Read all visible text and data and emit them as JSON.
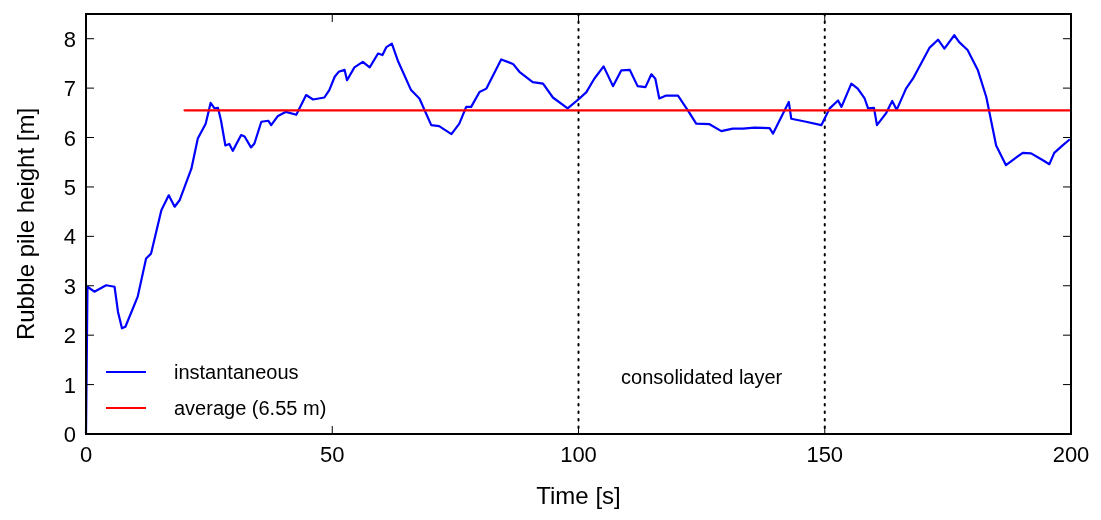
{
  "chart_data": {
    "type": "line",
    "xlabel": "Time [s]",
    "ylabel": "Rubble pile height [m]",
    "xlim": [
      0,
      200
    ],
    "ylim": [
      0,
      8.5
    ],
    "xticks": [
      0,
      50,
      100,
      150,
      200
    ],
    "yticks": [
      0,
      1,
      2,
      3,
      4,
      5,
      6,
      7,
      8
    ],
    "grid": false,
    "legend": "bottom left",
    "line_style": "solid",
    "marker": "none",
    "series": [
      {
        "name": "instantaneous",
        "color": "#0000ff",
        "x": [
          0,
          0.3,
          1.7,
          4.1,
          5.8,
          6.5,
          7.3,
          8.0,
          10.5,
          12.2,
          13.2,
          15.3,
          16.8,
          18.0,
          19.0,
          21.4,
          22.7,
          24.3,
          25.3,
          26.1,
          26.8,
          27.4,
          28.3,
          29.1,
          29.8,
          31.5,
          32.2,
          33.5,
          34.2,
          35.6,
          37.0,
          37.6,
          38.9,
          40.6,
          42.7,
          44.7,
          46.1,
          48.4,
          49.4,
          50.5,
          51.3,
          52.5,
          53.0,
          54.5,
          56.2,
          57.6,
          59.3,
          60.2,
          61.0,
          62.1,
          63.3,
          66.0,
          67.7,
          70.1,
          71.7,
          74.2,
          75.8,
          77.2,
          78.2,
          79.9,
          81.3,
          84.3,
          86.7,
          88.0,
          90.7,
          92.8,
          94.8,
          97.8,
          100.2,
          101.6,
          103.2,
          105.1,
          107.0,
          108.7,
          110.4,
          112.0,
          113.6,
          114.8,
          115.6,
          116.4,
          117.8,
          120.2,
          122.2,
          123.9,
          126.6,
          129.0,
          131.3,
          133.4,
          135.7,
          138.8,
          139.5,
          141.2,
          142.7,
          143.2,
          146.2,
          149.3,
          151.0,
          152.7,
          153.4,
          155.4,
          156.7,
          158.1,
          158.8,
          160.0,
          160.6,
          162.5,
          163.7,
          164.6,
          166.5,
          167.9,
          171.3,
          173.0,
          174.3,
          176.3,
          177.3,
          179.0,
          181.1,
          182.8,
          184.8,
          186.8,
          188.5,
          190.2,
          191.9,
          194.3,
          195.6,
          196.6,
          198.3,
          199.6
        ],
        "values": [
          0,
          2.98,
          2.88,
          3.01,
          2.98,
          2.47,
          2.14,
          2.17,
          2.78,
          3.55,
          3.65,
          4.53,
          4.83,
          4.6,
          4.73,
          5.37,
          5.98,
          6.28,
          6.7,
          6.59,
          6.6,
          6.35,
          5.84,
          5.87,
          5.73,
          6.05,
          6.02,
          5.8,
          5.88,
          6.32,
          6.34,
          6.25,
          6.43,
          6.52,
          6.46,
          6.86,
          6.77,
          6.81,
          6.96,
          7.23,
          7.33,
          7.37,
          7.16,
          7.42,
          7.53,
          7.42,
          7.7,
          7.67,
          7.83,
          7.9,
          7.56,
          6.96,
          6.79,
          6.25,
          6.23,
          6.07,
          6.28,
          6.62,
          6.62,
          6.92,
          6.99,
          7.58,
          7.49,
          7.33,
          7.12,
          7.09,
          6.81,
          6.59,
          6.79,
          6.92,
          7.19,
          7.44,
          7.04,
          7.36,
          7.37,
          7.04,
          7.02,
          7.28,
          7.19,
          6.79,
          6.85,
          6.85,
          6.55,
          6.28,
          6.27,
          6.13,
          6.18,
          6.18,
          6.2,
          6.19,
          6.08,
          6.42,
          6.72,
          6.38,
          6.32,
          6.25,
          6.59,
          6.75,
          6.62,
          7.09,
          6.99,
          6.79,
          6.59,
          6.6,
          6.25,
          6.5,
          6.74,
          6.56,
          6.99,
          7.19,
          7.82,
          7.98,
          7.8,
          8.07,
          7.93,
          7.77,
          7.36,
          6.82,
          5.84,
          5.44,
          5.57,
          5.69,
          5.68,
          5.54,
          5.46,
          5.69,
          5.84,
          5.95
        ]
      },
      {
        "name": "average (6.55 m)",
        "color": "#ff0000",
        "x": [
          20,
          200
        ],
        "values": [
          6.55,
          6.55
        ]
      }
    ],
    "ref_lines": [
      {
        "axis": "x",
        "value": 100,
        "color": "#000000",
        "line_style": "dotted"
      },
      {
        "axis": "x",
        "value": 150,
        "color": "#000000",
        "line_style": "dotted"
      }
    ],
    "annotations": [
      "consolidated layer"
    ]
  }
}
